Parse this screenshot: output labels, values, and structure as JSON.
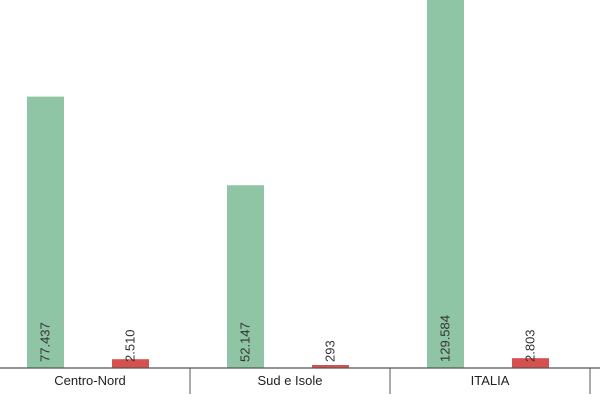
{
  "chart_data": {
    "type": "bar",
    "categories": [
      "Centro-Nord",
      "Sud e Isole",
      "ITALIA"
    ],
    "series": [
      {
        "values": [
          77437,
          52147,
          129584
        ],
        "value_labels": [
          "77.437",
          "52.147",
          "129.584"
        ],
        "color": "#8fc5a4"
      },
      {
        "values": [
          2510,
          293,
          2803
        ],
        "value_labels": [
          "2.510",
          "293",
          "2.803"
        ],
        "color": "#d75050"
      }
    ],
    "ylim": [
      0,
      105000
    ],
    "grid": false,
    "legend": "none"
  },
  "colors": {
    "axis": "#555555"
  }
}
